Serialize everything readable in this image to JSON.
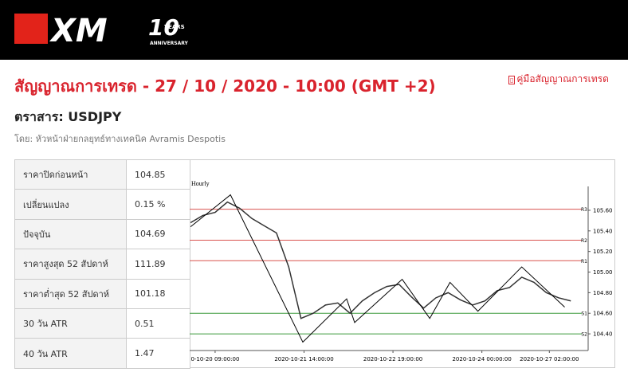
{
  "header": {
    "logo": "XM",
    "badge": "10",
    "badge_top": "YEARS",
    "badge_bottom": "ANNIVERSARY"
  },
  "title": "สัญญาณการเทรด - 27 / 10 / 2020 - 10:00 (GMT +2)",
  "guide_link": "คู่มือสัญญาณการเทรด",
  "instrument": "ตราสาร: USDJPY",
  "author": "โดย: หัวหน้าฝ่ายกลยุทธ์ทางเทคนิค Avramis Despotis",
  "table": {
    "rows": [
      [
        "ราคาปิดก่อนหน้า",
        "104.85"
      ],
      [
        "เปลี่ยนแปลง",
        "0.15 %"
      ],
      [
        "ปัจจุบัน",
        "104.69"
      ],
      [
        "ราคาสูงสุด 52 สัปดาห์",
        "111.89"
      ],
      [
        "ราคาต่ำสุด 52 สัปดาห์",
        "101.18"
      ],
      [
        "30 วัน ATR",
        "0.51"
      ],
      [
        "40 วัน ATR",
        "1.47"
      ]
    ]
  },
  "chart_data": {
    "type": "line",
    "timeframe": "Hourly",
    "xlim": [
      -8.3,
      117.5
    ],
    "xticks": [
      {
        "value": 0,
        "label": "0-10-20 09:00:00"
      },
      {
        "value": 29,
        "label": "2020-10-21 14:00:00"
      },
      {
        "value": 58,
        "label": "2020-10-22 19:00:00"
      },
      {
        "value": 87,
        "label": "2020-10-24 00:00:00"
      },
      {
        "value": 109,
        "label": "2020-10-27 02:00:00"
      }
    ],
    "ylim": [
      104.3,
      105.77
    ],
    "yticks": [
      {
        "value": 104.4,
        "label": "104.40"
      },
      {
        "value": 104.6,
        "label": "104.60"
      },
      {
        "value": 104.8,
        "label": "104.80"
      },
      {
        "value": 105,
        "label": "105.00"
      },
      {
        "value": 105.2,
        "label": "105.20"
      },
      {
        "value": 105.4,
        "label": "105.40"
      },
      {
        "value": 105.6,
        "label": "105.60"
      }
    ],
    "series": [
      {
        "color": "#333333",
        "x": [
          -8,
          -4,
          0,
          4,
          8,
          12,
          16,
          20,
          24,
          28,
          32,
          36,
          40,
          44,
          48,
          52,
          56,
          60,
          64,
          68,
          72,
          76,
          80,
          84,
          88,
          92,
          96,
          100,
          104,
          108,
          112,
          116
        ],
        "values": [
          105.48,
          105.55,
          105.58,
          105.68,
          105.62,
          105.52,
          105.45,
          105.38,
          105.05,
          104.55,
          104.6,
          104.68,
          104.7,
          104.6,
          104.72,
          104.8,
          104.86,
          104.88,
          104.76,
          104.65,
          104.75,
          104.8,
          104.73,
          104.68,
          104.72,
          104.82,
          104.85,
          104.95,
          104.9,
          104.8,
          104.75,
          104.72
        ]
      },
      {
        "color": "#000000",
        "x": [
          -8,
          5,
          28.6,
          42.9,
          45.5,
          61,
          70,
          76.6,
          85.7,
          100,
          114
        ],
        "values": [
          105.44,
          105.75,
          104.32,
          104.74,
          104.51,
          104.93,
          104.55,
          104.9,
          104.62,
          105.05,
          104.66
        ]
      }
    ],
    "levels": [
      {
        "label": "R3",
        "value": 105.61,
        "color": "#d9534f"
      },
      {
        "label": "R2",
        "value": 105.31,
        "color": "#d9534f"
      },
      {
        "label": "R1",
        "value": 105.11,
        "color": "#d9534f"
      },
      {
        "label": "S1",
        "value": 104.6,
        "color": "#3c9a3c"
      },
      {
        "label": "S2",
        "value": 104.4,
        "color": "#3c9a3c"
      }
    ]
  }
}
